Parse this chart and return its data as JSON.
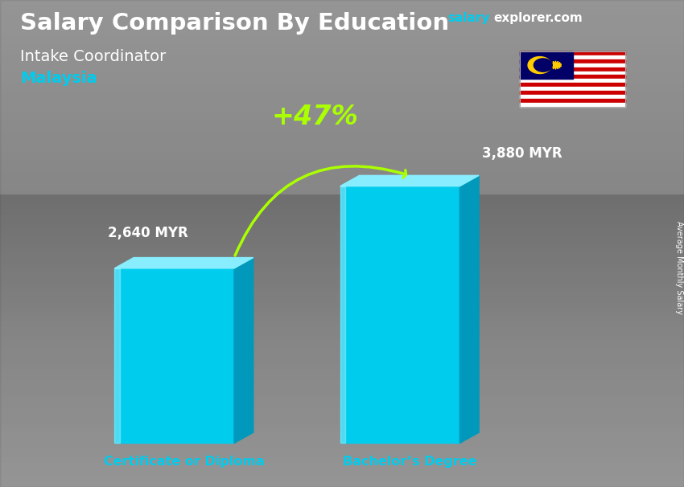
{
  "title_main": "Salary Comparison By Education",
  "title_sub1": "Intake Coordinator",
  "title_sub2": "Malaysia",
  "website_salary": "salary",
  "website_explorer": "explorer.com",
  "categories": [
    "Certificate or Diploma",
    "Bachelor’s Degree"
  ],
  "values": [
    2640,
    3880
  ],
  "value_labels": [
    "2,640 MYR",
    "3,880 MYR"
  ],
  "pct_change": "+47%",
  "bar_face_color": "#00CCEE",
  "bar_right_color": "#0099BB",
  "bar_top_color": "#88EEFF",
  "ylabel": "Average Monthly Salary",
  "title_color": "#ffffff",
  "malaysia_color": "#00CCEE",
  "cat_label_color": "#00CCEE",
  "value_label_color": "#ffffff",
  "pct_color": "#AAFF00",
  "arrow_color": "#AAFF00",
  "website_salary_color": "#00CCEE",
  "website_rest_color": "#ffffff"
}
